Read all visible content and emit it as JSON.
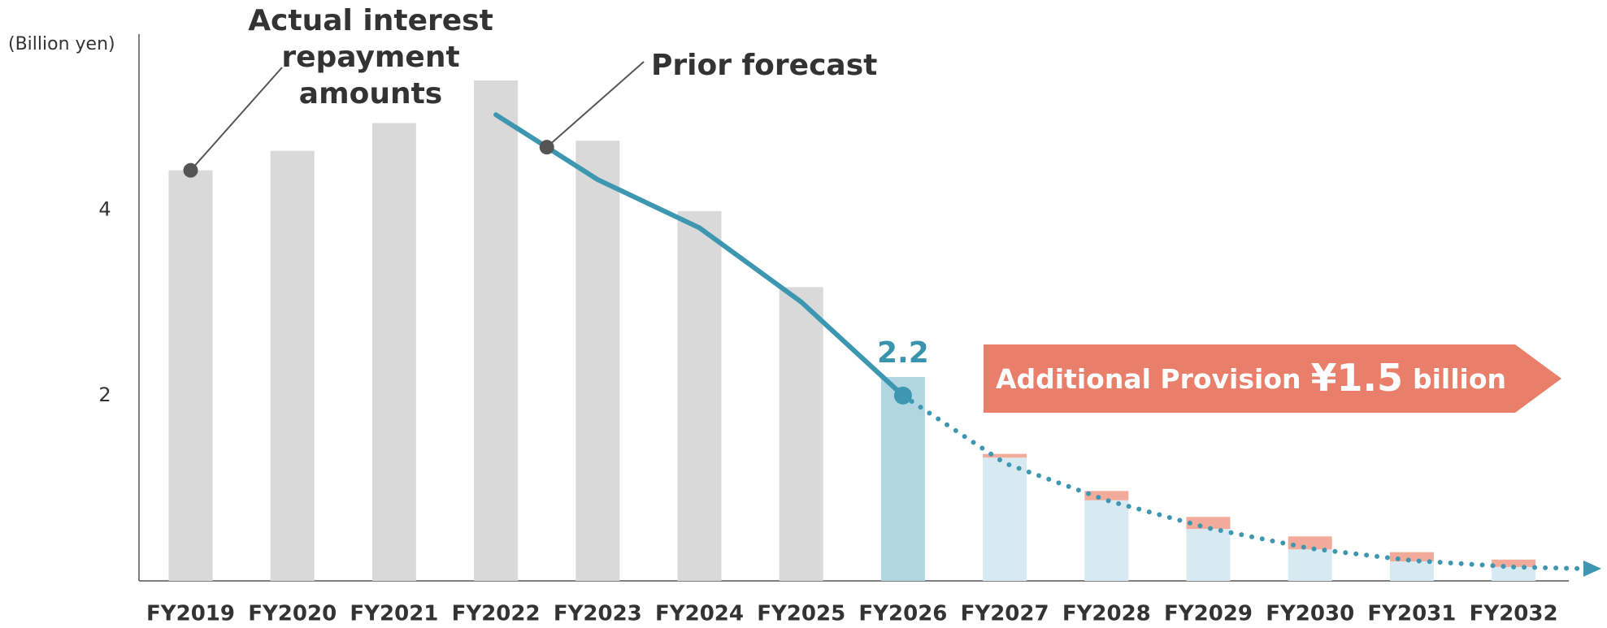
{
  "chart_data": {
    "type": "bar",
    "unit_label": "(Billion yen)",
    "categories": [
      "FY2019",
      "FY2020",
      "FY2021",
      "FY2022",
      "FY2023",
      "FY2024",
      "FY2025",
      "FY2026",
      "FY2027",
      "FY2028",
      "FY2029",
      "FY2030",
      "FY2031",
      "FY2032"
    ],
    "series": [
      {
        "color": "#d9d9d9",
        "values": [
          4.43,
          4.64,
          4.94,
          5.4,
          4.75,
          3.99,
          3.17,
          null,
          null,
          null,
          null,
          null,
          null,
          null
        ]
      },
      {
        "color": "#b0d6e1",
        "values": [
          null,
          null,
          null,
          null,
          null,
          null,
          null,
          2.2,
          null,
          null,
          null,
          null,
          null,
          null
        ],
        "value_labels": [
          null,
          null,
          null,
          null,
          null,
          null,
          null,
          "2.2",
          null,
          null,
          null,
          null,
          null,
          null
        ]
      },
      {
        "color": "#d8eaf1",
        "values": [
          null,
          null,
          null,
          null,
          null,
          null,
          null,
          null,
          1.33,
          0.87,
          0.56,
          0.34,
          0.21,
          0.15
        ]
      },
      {
        "color": "#f2aa9a",
        "values": [
          null,
          null,
          null,
          null,
          null,
          null,
          null,
          null,
          0.04,
          0.1,
          0.13,
          0.14,
          0.1,
          0.08
        ]
      }
    ],
    "lines": [
      {
        "color": "#3d97b1",
        "style": "solid",
        "values": [
          null,
          null,
          null,
          5.03,
          4.33,
          3.81,
          3.01,
          2.0,
          null,
          null,
          null,
          null,
          null,
          null
        ]
      },
      {
        "color": "#3d97b1",
        "style": "dotted",
        "values": [
          null,
          null,
          null,
          null,
          null,
          null,
          null,
          2.0,
          1.27,
          0.87,
          0.57,
          0.35,
          0.22,
          0.15
        ]
      }
    ],
    "ylim": [
      0,
      5.9
    ],
    "yticks": [
      2,
      4
    ],
    "annotations": {
      "actual": {
        "lines": [
          "Actual interest",
          "repayment",
          "amounts"
        ]
      },
      "prior": {
        "text": "Prior forecast"
      },
      "banner": {
        "color": "#e97f6b",
        "parts": [
          "Additional Provision",
          "¥1.5",
          "billion"
        ]
      }
    }
  }
}
